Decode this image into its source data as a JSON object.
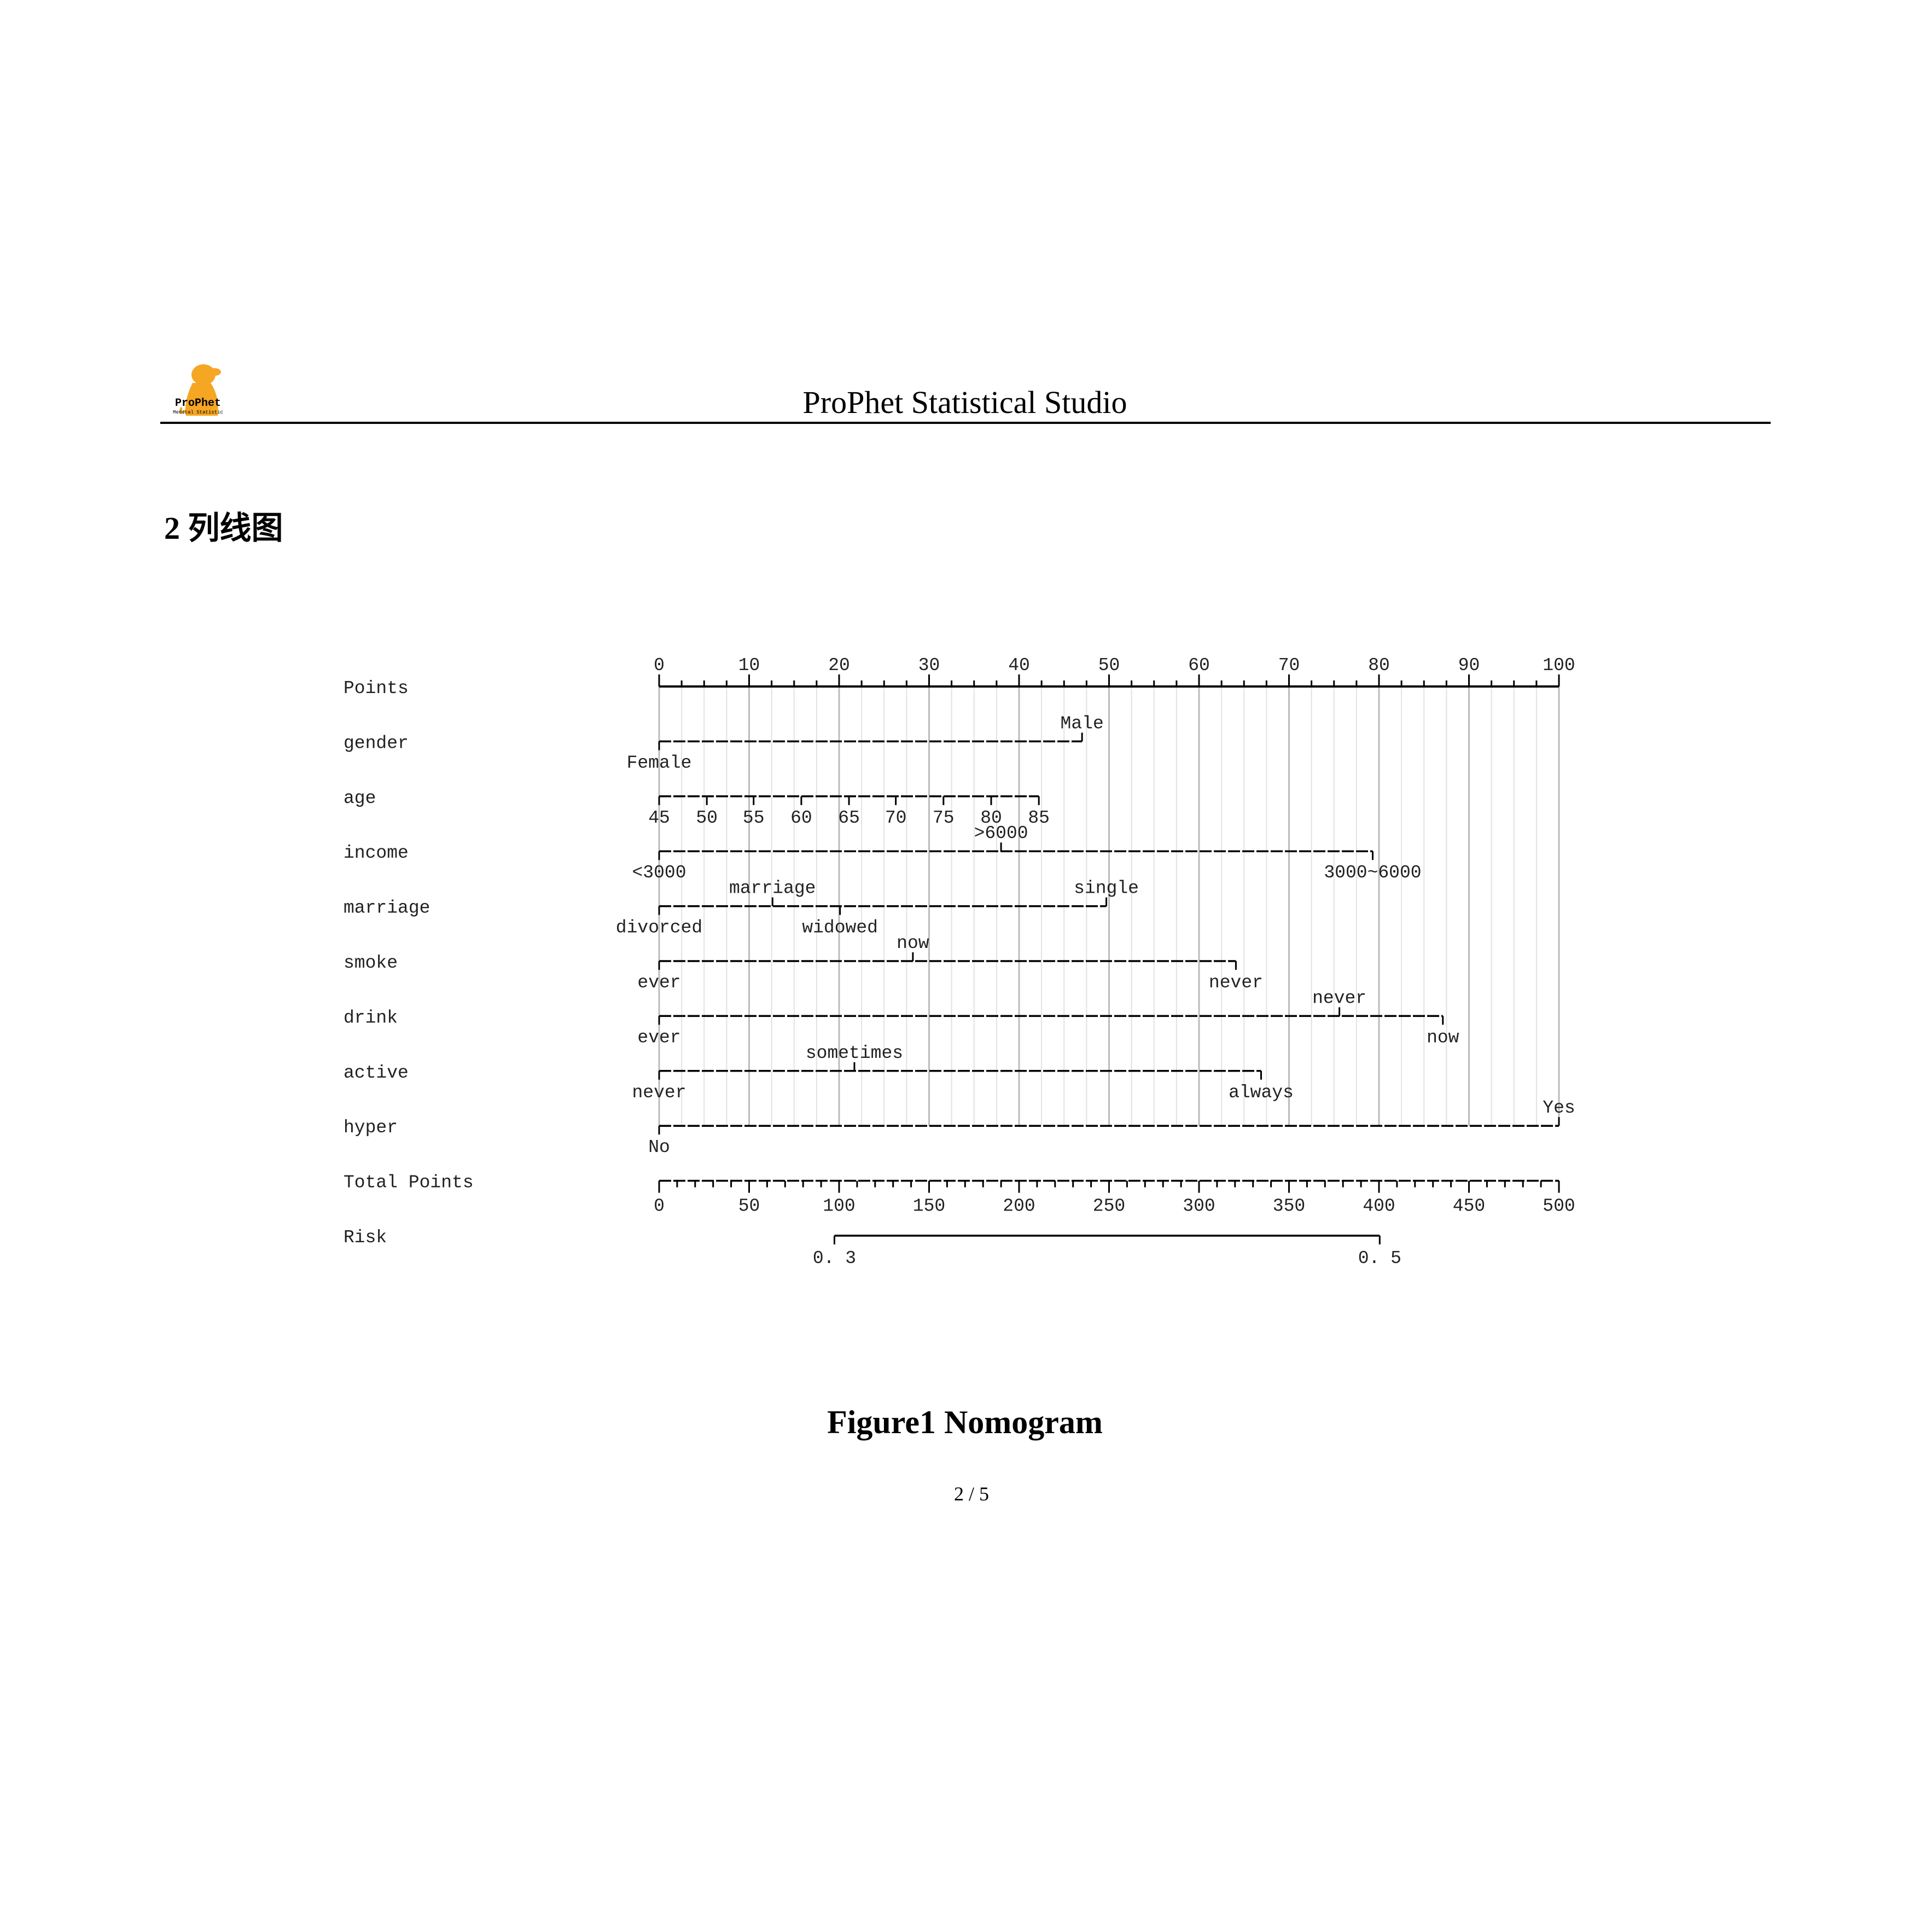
{
  "header": {
    "logo_text": "ProPhet",
    "logo_subtext": "Medical Statistic",
    "title": "ProPhet Statistical Studio",
    "logo_color": "#F5A623"
  },
  "section_heading": "2  列线图",
  "figure_caption": "Figure1 Nomogram",
  "page_number": "2 / 5",
  "chart_data": {
    "type": "nomogram",
    "points_axis": {
      "label": "Points",
      "range": [
        0,
        100
      ],
      "major_step": 10,
      "ticks": [
        "0",
        "10",
        "20",
        "30",
        "40",
        "50",
        "60",
        "70",
        "80",
        "90",
        "100"
      ]
    },
    "variables": [
      {
        "name": "gender",
        "levels": [
          {
            "label": "Female",
            "points": 0
          },
          {
            "label": "Male",
            "points": 47
          }
        ]
      },
      {
        "name": "age",
        "levels": [
          {
            "label": "45",
            "points": 0
          },
          {
            "label": "50",
            "points": 5.3
          },
          {
            "label": "55",
            "points": 10.5
          },
          {
            "label": "60",
            "points": 15.8
          },
          {
            "label": "65",
            "points": 21.1
          },
          {
            "label": "70",
            "points": 26.3
          },
          {
            "label": "75",
            "points": 31.6
          },
          {
            "label": "80",
            "points": 36.9
          },
          {
            "label": "85",
            "points": 42.2
          }
        ]
      },
      {
        "name": "income",
        "levels": [
          {
            "label": "<3000",
            "points": 0
          },
          {
            "label": ">6000",
            "points": 38
          },
          {
            "label": "3000~6000",
            "points": 79.3
          }
        ]
      },
      {
        "name": "marriage",
        "levels": [
          {
            "label": "divorced",
            "points": 0
          },
          {
            "label": "marriage",
            "points": 12.6
          },
          {
            "label": "widowed",
            "points": 20.1
          },
          {
            "label": "single",
            "points": 49.7
          }
        ]
      },
      {
        "name": "smoke",
        "levels": [
          {
            "label": "ever",
            "points": 0
          },
          {
            "label": "now",
            "points": 28.2
          },
          {
            "label": "never",
            "points": 64.1
          }
        ]
      },
      {
        "name": "drink",
        "levels": [
          {
            "label": "ever",
            "points": 0
          },
          {
            "label": "never",
            "points": 75.6
          },
          {
            "label": "now",
            "points": 87.1
          }
        ]
      },
      {
        "name": "active",
        "levels": [
          {
            "label": "never",
            "points": 0
          },
          {
            "label": "sometimes",
            "points": 21.7
          },
          {
            "label": "always",
            "points": 66.9
          }
        ]
      },
      {
        "name": "hyper",
        "levels": [
          {
            "label": "No",
            "points": 0
          },
          {
            "label": "Yes",
            "points": 100
          }
        ]
      }
    ],
    "total_points_axis": {
      "label": "Total Points",
      "range": [
        0,
        500
      ],
      "major_step": 50,
      "ticks": [
        "0",
        "50",
        "100",
        "150",
        "200",
        "250",
        "300",
        "350",
        "400",
        "450",
        "500"
      ]
    },
    "risk_axis": {
      "label": "Risk",
      "ticks": [
        {
          "label": "0. 3",
          "total_points": 97.4
        },
        {
          "label": "0. 5",
          "total_points": 400.4
        }
      ]
    },
    "grid": true
  }
}
